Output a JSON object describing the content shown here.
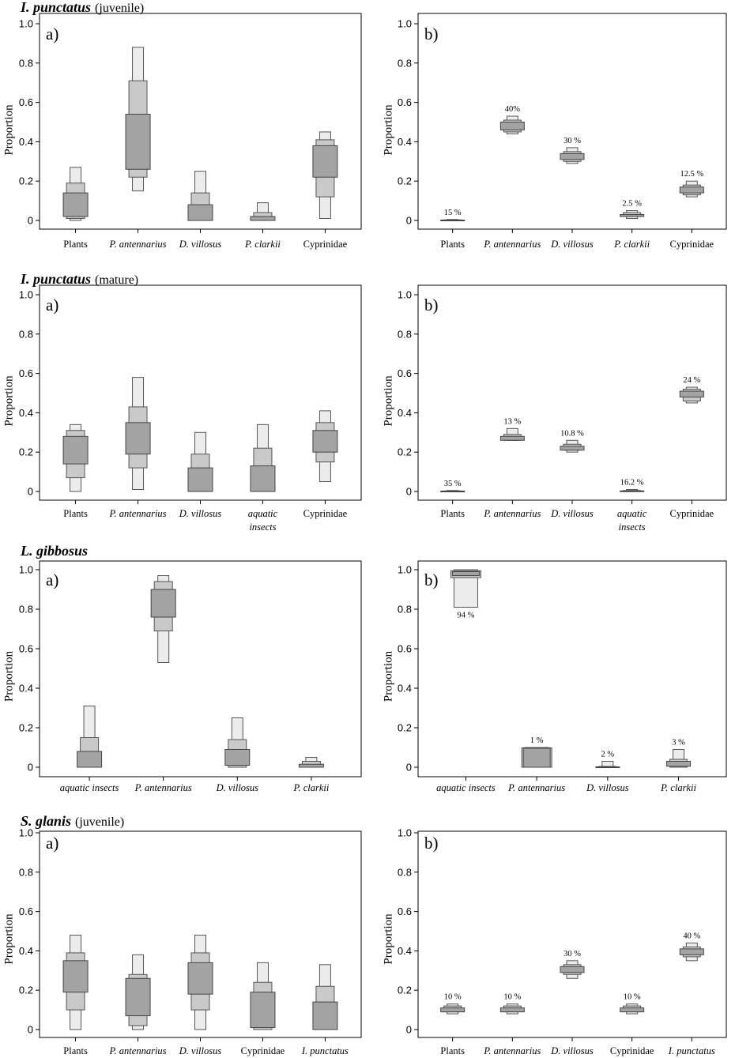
{
  "sections": [
    {
      "title_species": "I. punctatus",
      "title_note": "(juvenile)",
      "charts": [
        {
          "panel": "a)",
          "chart_data": {
            "type": "box",
            "ylabel": "Proportion",
            "ylim": [
              0,
              1.0
            ],
            "yticks": [
              "0",
              "0.2",
              "0.4",
              "0.6",
              "0.8",
              "1.0"
            ],
            "categories": [
              "Plants",
              "P. antennarius",
              "D. villosus",
              "P. clarkii",
              "Cyprinidae"
            ],
            "italic": [
              false,
              true,
              true,
              true,
              false
            ],
            "intervals": [
              {
                "c95": [
                  0.0,
                  0.27
                ],
                "c75": [
                  0.01,
                  0.19
                ],
                "c50": [
                  0.02,
                  0.14
                ]
              },
              {
                "c95": [
                  0.15,
                  0.88
                ],
                "c75": [
                  0.22,
                  0.71
                ],
                "c50": [
                  0.26,
                  0.54
                ]
              },
              {
                "c95": [
                  0.0,
                  0.25
                ],
                "c75": [
                  0.0,
                  0.14
                ],
                "c50": [
                  0.0,
                  0.08
                ]
              },
              {
                "c95": [
                  0.0,
                  0.09
                ],
                "c75": [
                  0.0,
                  0.04
                ],
                "c50": [
                  0.0,
                  0.02
                ]
              },
              {
                "c95": [
                  0.01,
                  0.45
                ],
                "c75": [
                  0.12,
                  0.41
                ],
                "c50": [
                  0.22,
                  0.38
                ]
              }
            ]
          }
        },
        {
          "panel": "b)",
          "chart_data": {
            "type": "box",
            "ylabel": "Proportion",
            "ylim": [
              0,
              1.0
            ],
            "yticks": [
              "0",
              "0.2",
              "0.4",
              "0.6",
              "0.8",
              "1.0"
            ],
            "categories": [
              "Plants",
              "P. antennarius",
              "D. villosus",
              "P. clarkii",
              "Cyprinidae"
            ],
            "italic": [
              false,
              true,
              true,
              true,
              false
            ],
            "percent_labels": [
              "15 %",
              "40%",
              "30 %",
              "2.5 %",
              "12.5 %"
            ],
            "intervals": [
              {
                "c95": [
                  0.0,
                  0.005
                ],
                "c75": [
                  0.0,
                  0.003
                ],
                "c50": [
                  0.0,
                  0.002
                ]
              },
              {
                "c95": [
                  0.44,
                  0.53
                ],
                "c75": [
                  0.45,
                  0.51
                ],
                "c50": [
                  0.46,
                  0.5
                ]
              },
              {
                "c95": [
                  0.29,
                  0.37
                ],
                "c75": [
                  0.3,
                  0.35
                ],
                "c50": [
                  0.31,
                  0.34
                ]
              },
              {
                "c95": [
                  0.01,
                  0.05
                ],
                "c75": [
                  0.02,
                  0.04
                ],
                "c50": [
                  0.02,
                  0.03
                ]
              },
              {
                "c95": [
                  0.12,
                  0.2
                ],
                "c75": [
                  0.13,
                  0.18
                ],
                "c50": [
                  0.14,
                  0.17
                ]
              }
            ]
          }
        }
      ]
    },
    {
      "title_species": "I. punctatus",
      "title_note": "(mature)",
      "charts": [
        {
          "panel": "a)",
          "chart_data": {
            "type": "box",
            "ylabel": "Proportion",
            "ylim": [
              0,
              1.0
            ],
            "yticks": [
              "0",
              "0.2",
              "0.4",
              "0.6",
              "0.8",
              "1.0"
            ],
            "categories": [
              "Plants",
              "P. antennarius",
              "D. villosus",
              "aquatic insects",
              "Cyprinidae"
            ],
            "italic": [
              false,
              true,
              true,
              true,
              false
            ],
            "intervals": [
              {
                "c95": [
                  0.0,
                  0.34
                ],
                "c75": [
                  0.07,
                  0.31
                ],
                "c50": [
                  0.14,
                  0.28
                ]
              },
              {
                "c95": [
                  0.01,
                  0.58
                ],
                "c75": [
                  0.12,
                  0.43
                ],
                "c50": [
                  0.19,
                  0.35
                ]
              },
              {
                "c95": [
                  0.0,
                  0.3
                ],
                "c75": [
                  0.0,
                  0.19
                ],
                "c50": [
                  0.0,
                  0.12
                ]
              },
              {
                "c95": [
                  0.0,
                  0.34
                ],
                "c75": [
                  0.0,
                  0.22
                ],
                "c50": [
                  0.0,
                  0.13
                ]
              },
              {
                "c95": [
                  0.05,
                  0.41
                ],
                "c75": [
                  0.15,
                  0.35
                ],
                "c50": [
                  0.2,
                  0.31
                ]
              }
            ]
          }
        },
        {
          "panel": "b)",
          "chart_data": {
            "type": "box",
            "ylabel": "Proportion",
            "ylim": [
              0,
              1.0
            ],
            "yticks": [
              "0",
              "0.2",
              "0.4",
              "0.6",
              "0.8",
              "1.0"
            ],
            "categories": [
              "Plants",
              "P. antennarius",
              "D. villosus",
              "aquatic insects",
              "Cyprinidae"
            ],
            "italic": [
              false,
              true,
              true,
              true,
              false
            ],
            "percent_labels": [
              "35 %",
              "13 %",
              "10.8 %",
              "16.2 %",
              "24 %"
            ],
            "intervals": [
              {
                "c95": [
                  0.0,
                  0.005
                ],
                "c75": [
                  0.0,
                  0.003
                ],
                "c50": [
                  0.0,
                  0.002
                ]
              },
              {
                "c95": [
                  0.26,
                  0.32
                ],
                "c75": [
                  0.26,
                  0.29
                ],
                "c50": [
                  0.26,
                  0.28
                ]
              },
              {
                "c95": [
                  0.2,
                  0.26
                ],
                "c75": [
                  0.21,
                  0.24
                ],
                "c50": [
                  0.21,
                  0.23
                ]
              },
              {
                "c95": [
                  0.0,
                  0.01
                ],
                "c75": [
                  0.0,
                  0.005
                ],
                "c50": [
                  0.0,
                  0.003
                ]
              },
              {
                "c95": [
                  0.45,
                  0.53
                ],
                "c75": [
                  0.46,
                  0.52
                ],
                "c50": [
                  0.48,
                  0.51
                ]
              }
            ]
          }
        }
      ]
    },
    {
      "title_species": "L. gibbosus",
      "title_note": "",
      "charts": [
        {
          "panel": "a)",
          "chart_data": {
            "type": "box",
            "ylabel": "Proportion",
            "ylim": [
              0,
              1.0
            ],
            "yticks": [
              "0",
              "0.2",
              "0.4",
              "0.6",
              "0.8",
              "1.0"
            ],
            "categories": [
              "aquatic insects",
              "P. antennarius",
              "D. villosus",
              "P. clarkii"
            ],
            "italic": [
              true,
              true,
              true,
              true
            ],
            "intervals": [
              {
                "c95": [
                  0.0,
                  0.31
                ],
                "c75": [
                  0.0,
                  0.15
                ],
                "c50": [
                  0.0,
                  0.08
                ]
              },
              {
                "c95": [
                  0.53,
                  0.97
                ],
                "c75": [
                  0.69,
                  0.94
                ],
                "c50": [
                  0.76,
                  0.9
                ]
              },
              {
                "c95": [
                  0.0,
                  0.25
                ],
                "c75": [
                  0.0,
                  0.14
                ],
                "c50": [
                  0.01,
                  0.09
                ]
              },
              {
                "c95": [
                  0.0,
                  0.05
                ],
                "c75": [
                  0.0,
                  0.03
                ],
                "c50": [
                  0.0,
                  0.015
                ]
              }
            ]
          }
        },
        {
          "panel": "b)",
          "chart_data": {
            "type": "box",
            "ylabel": "Proportion",
            "ylim": [
              0,
              1.0
            ],
            "yticks": [
              "0",
              "0.2",
              "0.4",
              "0.6",
              "0.8",
              "1.0"
            ],
            "categories": [
              "aquatic insects",
              "P. antennarius",
              "D. villosus",
              "P. clarkii"
            ],
            "italic": [
              true,
              true,
              true,
              true
            ],
            "percent_labels": [
              "94 %",
              "1 %",
              "2 %",
              "3 %"
            ],
            "percent_below": [
              true,
              false,
              false,
              false
            ],
            "intervals": [
              {
                "c95": [
                  0.81,
                  1.0
                ],
                "c75": [
                  0.96,
                  0.995
                ],
                "c50": [
                  0.97,
                  0.99
                ]
              },
              {
                "c95": [
                  0.0,
                  0.1
                ],
                "c75": [
                  0.0,
                  0.098
                ],
                "c50": [
                  0.0,
                  0.096
                ]
              },
              {
                "c95": [
                  0.0,
                  0.03
                ],
                "c75": [
                  0.0,
                  0.004
                ],
                "c50": [
                  0.0,
                  0.002
                ]
              },
              {
                "c95": [
                  0.0,
                  0.09
                ],
                "c75": [
                  0.0,
                  0.04
                ],
                "c50": [
                  0.005,
                  0.03
                ]
              }
            ]
          }
        }
      ]
    },
    {
      "title_species": "S. glanis",
      "title_note": "(juvenile)",
      "charts": [
        {
          "panel": "a)",
          "chart_data": {
            "type": "box",
            "ylabel": "Proportion",
            "ylim": [
              0,
              1.0
            ],
            "yticks": [
              "0",
              "0.2",
              "0.4",
              "0.6",
              "0.8",
              "1.0"
            ],
            "categories": [
              "Plants",
              "P. antennarius",
              "D. villosus",
              "Cyprinidae",
              "I. punctatus"
            ],
            "italic": [
              false,
              true,
              true,
              false,
              true
            ],
            "intervals": [
              {
                "c95": [
                  0.0,
                  0.48
                ],
                "c75": [
                  0.1,
                  0.39
                ],
                "c50": [
                  0.19,
                  0.35
                ]
              },
              {
                "c95": [
                  0.0,
                  0.38
                ],
                "c75": [
                  0.02,
                  0.28
                ],
                "c50": [
                  0.07,
                  0.26
                ]
              },
              {
                "c95": [
                  0.0,
                  0.48
                ],
                "c75": [
                  0.1,
                  0.39
                ],
                "c50": [
                  0.18,
                  0.34
                ]
              },
              {
                "c95": [
                  0.0,
                  0.34
                ],
                "c75": [
                  0.0,
                  0.24
                ],
                "c50": [
                  0.01,
                  0.19
                ]
              },
              {
                "c95": [
                  0.0,
                  0.33
                ],
                "c75": [
                  0.0,
                  0.22
                ],
                "c50": [
                  0.0,
                  0.14
                ]
              }
            ]
          }
        },
        {
          "panel": "b)",
          "chart_data": {
            "type": "box",
            "ylabel": "Proportion",
            "ylim": [
              0,
              1.0
            ],
            "yticks": [
              "0",
              "0.2",
              "0.4",
              "0.6",
              "0.8",
              "1.0"
            ],
            "categories": [
              "Plants",
              "P. antennarius",
              "D. villosus",
              "Cyprinidae",
              "I. punctatus"
            ],
            "italic": [
              false,
              true,
              true,
              false,
              true
            ],
            "percent_labels": [
              "10 %",
              "10 %",
              "30 %",
              "10 %",
              "40 %"
            ],
            "intervals": [
              {
                "c95": [
                  0.08,
                  0.13
                ],
                "c75": [
                  0.09,
                  0.12
                ],
                "c50": [
                  0.09,
                  0.11
                ]
              },
              {
                "c95": [
                  0.08,
                  0.13
                ],
                "c75": [
                  0.09,
                  0.12
                ],
                "c50": [
                  0.09,
                  0.11
                ]
              },
              {
                "c95": [
                  0.26,
                  0.35
                ],
                "c75": [
                  0.28,
                  0.33
                ],
                "c50": [
                  0.29,
                  0.32
                ]
              },
              {
                "c95": [
                  0.08,
                  0.13
                ],
                "c75": [
                  0.09,
                  0.12
                ],
                "c50": [
                  0.09,
                  0.11
                ]
              },
              {
                "c95": [
                  0.35,
                  0.44
                ],
                "c75": [
                  0.37,
                  0.42
                ],
                "c50": [
                  0.38,
                  0.41
                ]
              }
            ]
          }
        }
      ]
    }
  ]
}
